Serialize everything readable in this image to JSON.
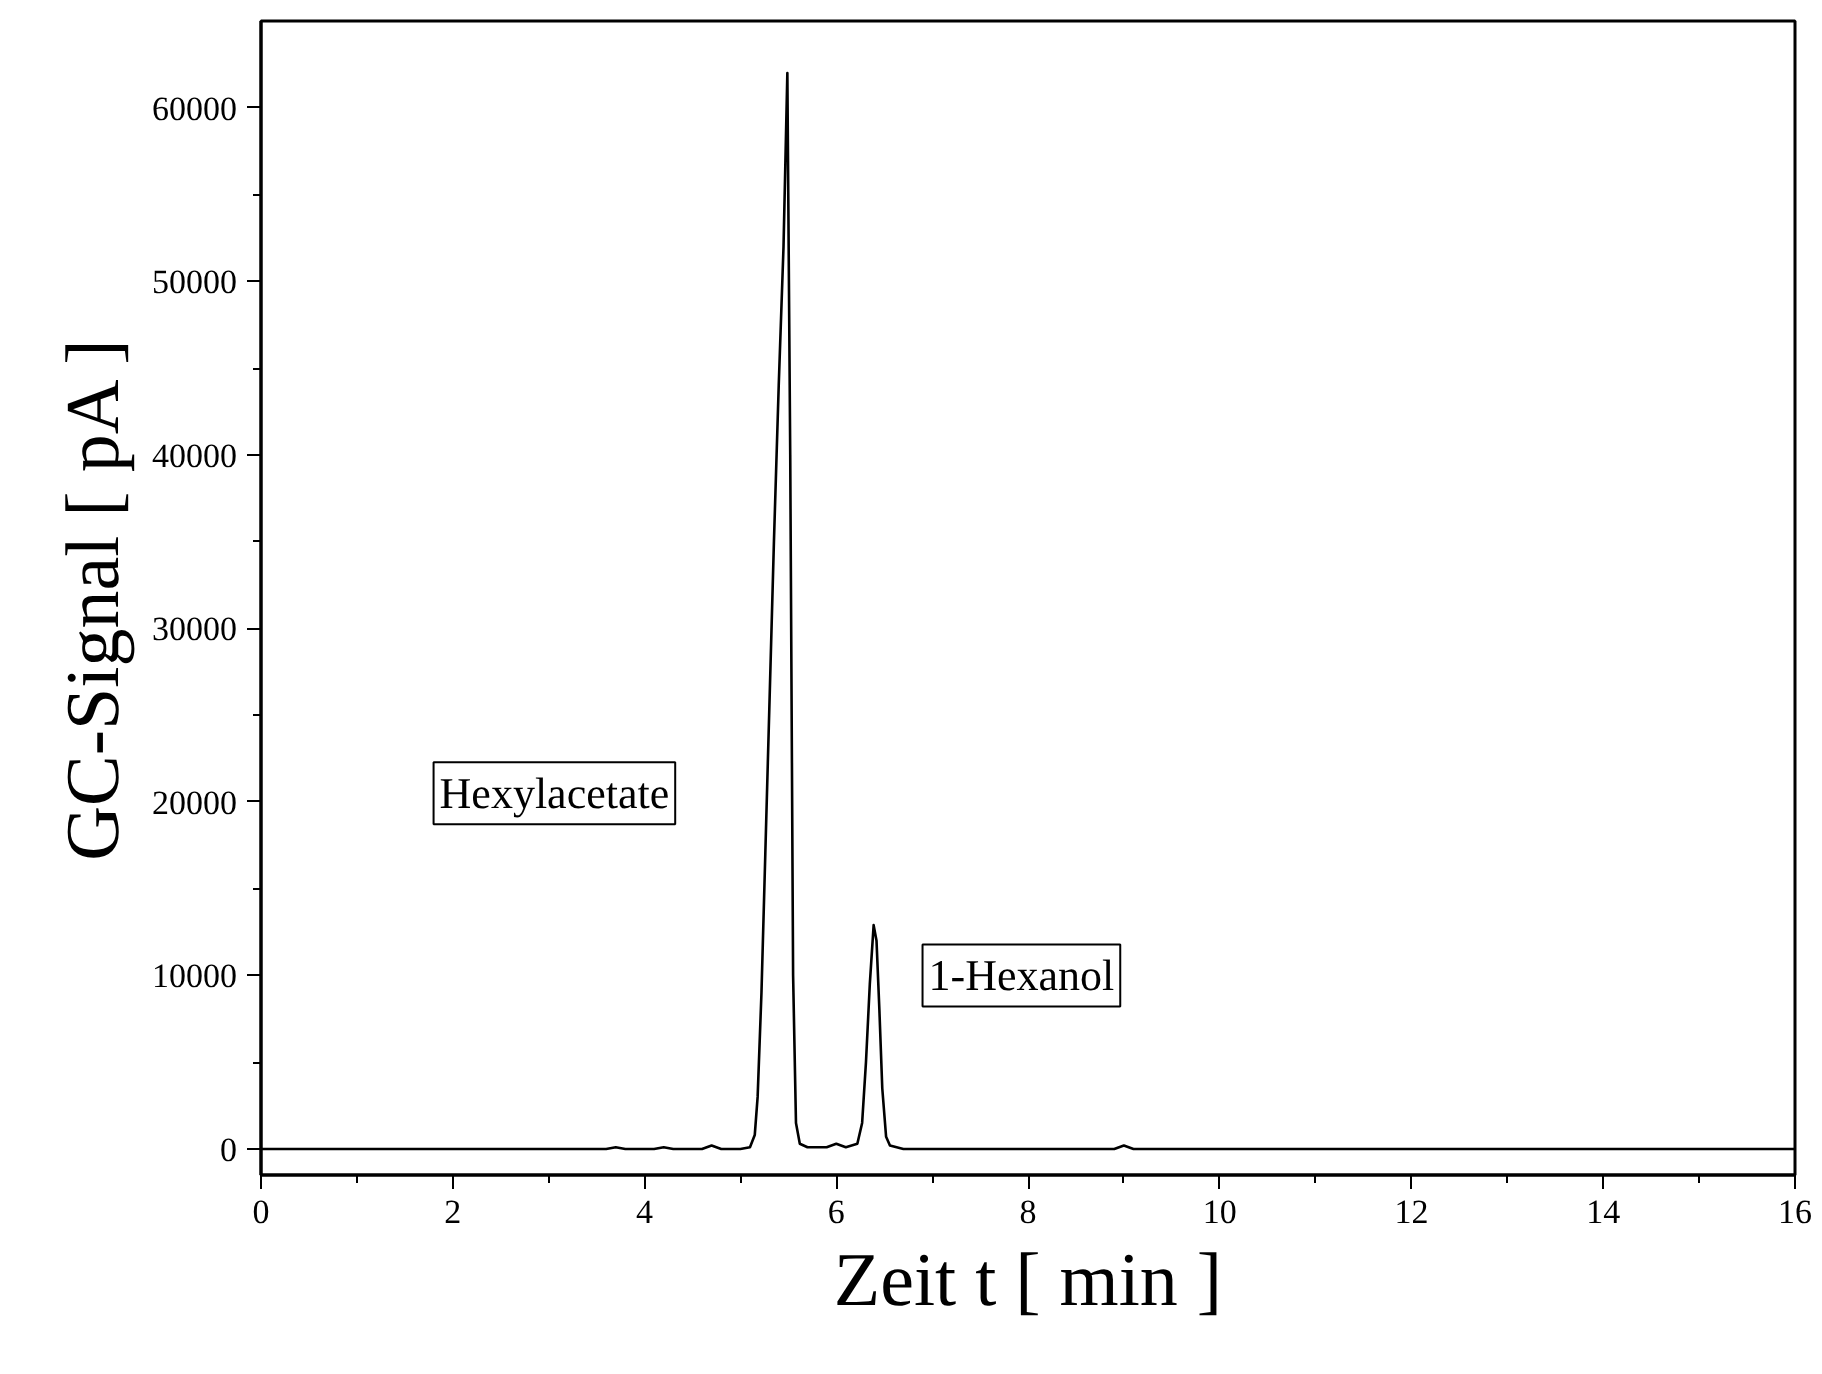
{
  "chart_data": {
    "type": "line",
    "xlabel": "Zeit t [ min ]",
    "ylabel": "GC-Signal [ pA ]",
    "x": [
      0,
      1,
      2,
      3,
      3.6,
      3.7,
      3.8,
      4.1,
      4.2,
      4.3,
      4.6,
      4.7,
      4.8,
      5.0,
      5.1,
      5.15,
      5.18,
      5.22,
      5.26,
      5.3,
      5.35,
      5.4,
      5.45,
      5.49,
      5.52,
      5.55,
      5.58,
      5.62,
      5.7,
      5.9,
      6.0,
      6.1,
      6.22,
      6.27,
      6.31,
      6.35,
      6.39,
      6.42,
      6.45,
      6.48,
      6.52,
      6.56,
      6.7,
      6.9,
      7.0,
      8.9,
      9.0,
      9.1,
      10,
      12,
      14,
      16
    ],
    "series": [
      {
        "color": "#000000",
        "values": [
          0,
          0,
          0,
          0,
          0,
          100,
          0,
          0,
          100,
          0,
          0,
          200,
          0,
          0,
          100,
          800,
          3000,
          9000,
          17000,
          25000,
          35000,
          44000,
          52000,
          62000,
          40000,
          10000,
          1500,
          300,
          100,
          100,
          300,
          100,
          300,
          1500,
          5000,
          9500,
          12900,
          12000,
          8000,
          3500,
          700,
          200,
          0,
          0,
          0,
          0,
          200,
          0,
          0,
          0,
          0,
          0
        ]
      }
    ],
    "xlim": [
      0,
      16
    ],
    "ylim": [
      -1500,
      65000
    ],
    "xticks": [
      0,
      2,
      4,
      6,
      8,
      10,
      12,
      14,
      16
    ],
    "yticks": [
      0,
      10000,
      20000,
      30000,
      40000,
      50000,
      60000
    ],
    "annotations": [
      "Hexylacetate",
      "1-Hexanol"
    ],
    "grid": false,
    "marker": "none",
    "line_style": "solid"
  }
}
